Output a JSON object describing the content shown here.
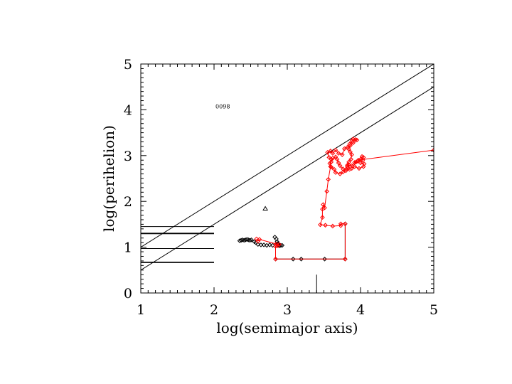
{
  "chart_data": {
    "type": "scatter",
    "title": "",
    "xlabel": "log(semimajor axis)",
    "ylabel": "log(perihelion)",
    "xlim": [
      1,
      5
    ],
    "ylim": [
      0,
      5
    ],
    "x_ticks": [
      "1",
      "2",
      "3",
      "4",
      "5"
    ],
    "y_ticks": [
      "0",
      "1",
      "2",
      "3",
      "4",
      "5"
    ],
    "grid": false,
    "annotations": [
      {
        "text": "0098",
        "x": 2.02,
        "y": 4.03
      }
    ],
    "reference_lines": [
      {
        "name": "diagonal-upper",
        "points": [
          [
            1,
            1.0
          ],
          [
            5,
            5.0
          ]
        ]
      },
      {
        "name": "diagonal-lower",
        "points": [
          [
            1,
            0.5
          ],
          [
            5,
            4.5
          ]
        ]
      },
      {
        "name": "h-line-1",
        "points": [
          [
            1,
            1.45
          ],
          [
            2,
            1.45
          ]
        ]
      },
      {
        "name": "h-line-2",
        "points": [
          [
            1,
            1.3
          ],
          [
            2,
            1.3
          ]
        ]
      },
      {
        "name": "h-line-3",
        "points": [
          [
            1,
            0.97
          ],
          [
            2,
            0.97
          ]
        ]
      },
      {
        "name": "h-line-4",
        "points": [
          [
            1,
            0.67
          ],
          [
            2,
            0.67
          ]
        ]
      },
      {
        "name": "v-line",
        "points": [
          [
            3.4,
            0
          ],
          [
            3.4,
            0.4
          ]
        ]
      }
    ],
    "series": [
      {
        "color": "#000000",
        "marker": "diamond",
        "points": [
          [
            2.35,
            1.14
          ],
          [
            2.37,
            1.15
          ],
          [
            2.39,
            1.16
          ],
          [
            2.41,
            1.15
          ],
          [
            2.43,
            1.16
          ],
          [
            2.45,
            1.17
          ],
          [
            2.47,
            1.16
          ],
          [
            2.49,
            1.15
          ],
          [
            2.51,
            1.16
          ],
          [
            2.55,
            1.12
          ],
          [
            2.57,
            1.1
          ],
          [
            2.6,
            1.06
          ],
          [
            2.64,
            1.05
          ],
          [
            2.68,
            1.05
          ],
          [
            2.72,
            1.04
          ],
          [
            2.76,
            1.05
          ],
          [
            2.8,
            1.04
          ],
          [
            2.83,
            1.22
          ],
          [
            2.85,
            1.18
          ],
          [
            2.86,
            1.12
          ],
          [
            2.87,
            1.08
          ],
          [
            2.88,
            1.05
          ],
          [
            2.89,
            1.03
          ],
          [
            2.91,
            1.04
          ],
          [
            2.93,
            1.04
          ]
        ]
      },
      {
        "color": "#000000",
        "marker": "diamond",
        "connected": true,
        "points": [
          [
            2.84,
            1.02
          ],
          [
            2.84,
            0.74
          ],
          [
            3.08,
            0.74
          ],
          [
            3.19,
            0.74
          ],
          [
            3.51,
            0.74
          ],
          [
            3.79,
            0.74
          ],
          [
            3.79,
            1.51
          ]
        ]
      },
      {
        "color": "#000000",
        "marker": "triangle",
        "points": [
          [
            2.7,
            1.84
          ]
        ]
      },
      {
        "color": "#ff0000",
        "marker": "diamond",
        "connected": true,
        "points": [
          [
            2.58,
            1.18
          ],
          [
            2.6,
            1.13
          ],
          [
            2.62,
            1.17
          ],
          [
            2.85,
            1.07
          ],
          [
            2.87,
            1.03
          ],
          [
            2.89,
            1.06
          ],
          [
            2.84,
            1.02
          ],
          [
            2.84,
            0.74
          ],
          [
            3.79,
            0.74
          ],
          [
            3.79,
            1.51
          ],
          [
            3.73,
            1.51
          ],
          [
            3.73,
            1.47
          ],
          [
            3.62,
            1.46
          ],
          [
            3.52,
            1.48
          ],
          [
            3.45,
            1.49
          ],
          [
            3.48,
            1.65
          ],
          [
            3.48,
            1.83
          ],
          [
            3.49,
            1.93
          ],
          [
            3.51,
            1.86
          ],
          [
            3.54,
            2.22
          ],
          [
            3.56,
            2.48
          ],
          [
            3.59,
            2.76
          ],
          [
            3.6,
            2.92
          ],
          [
            3.57,
            2.96
          ],
          [
            3.55,
            3.07
          ],
          [
            3.59,
            3.1
          ],
          [
            3.62,
            3.05
          ],
          [
            3.66,
            3.12
          ],
          [
            3.7,
            3.05
          ],
          [
            3.75,
            3.02
          ],
          [
            3.78,
            3.15
          ],
          [
            3.82,
            3.18
          ],
          [
            3.85,
            3.25
          ],
          [
            3.88,
            3.32
          ],
          [
            3.9,
            3.36
          ],
          [
            3.93,
            3.35
          ],
          [
            3.95,
            3.34
          ],
          [
            3.9,
            3.28
          ],
          [
            3.86,
            3.22
          ],
          [
            3.84,
            3.14
          ],
          [
            3.86,
            3.08
          ],
          [
            3.88,
            3.02
          ],
          [
            3.87,
            2.92
          ],
          [
            3.84,
            2.86
          ],
          [
            3.82,
            2.79
          ],
          [
            3.85,
            2.7
          ],
          [
            3.8,
            2.67
          ],
          [
            3.76,
            2.71
          ],
          [
            3.72,
            2.78
          ],
          [
            3.7,
            2.84
          ],
          [
            3.68,
            2.92
          ],
          [
            3.66,
            2.97
          ],
          [
            3.62,
            2.94
          ],
          [
            3.6,
            2.86
          ],
          [
            3.58,
            2.83
          ],
          [
            3.6,
            2.75
          ],
          [
            3.64,
            2.7
          ],
          [
            3.66,
            2.63
          ],
          [
            3.72,
            2.6
          ],
          [
            3.76,
            2.64
          ],
          [
            3.8,
            2.7
          ],
          [
            3.82,
            2.76
          ],
          [
            3.84,
            2.8
          ],
          [
            3.88,
            2.78
          ],
          [
            3.92,
            2.85
          ],
          [
            3.96,
            2.88
          ],
          [
            4.0,
            2.92
          ],
          [
            4.02,
            2.98
          ],
          [
            4.04,
            2.96
          ],
          [
            4.03,
            2.9
          ],
          [
            4.0,
            2.84
          ],
          [
            4.05,
            2.82
          ],
          [
            4.04,
            2.76
          ],
          [
            3.98,
            2.72
          ],
          [
            3.92,
            2.76
          ],
          [
            3.88,
            2.72
          ],
          [
            3.94,
            2.86
          ],
          [
            3.97,
            2.9
          ],
          [
            5.0,
            3.12
          ]
        ]
      }
    ]
  }
}
